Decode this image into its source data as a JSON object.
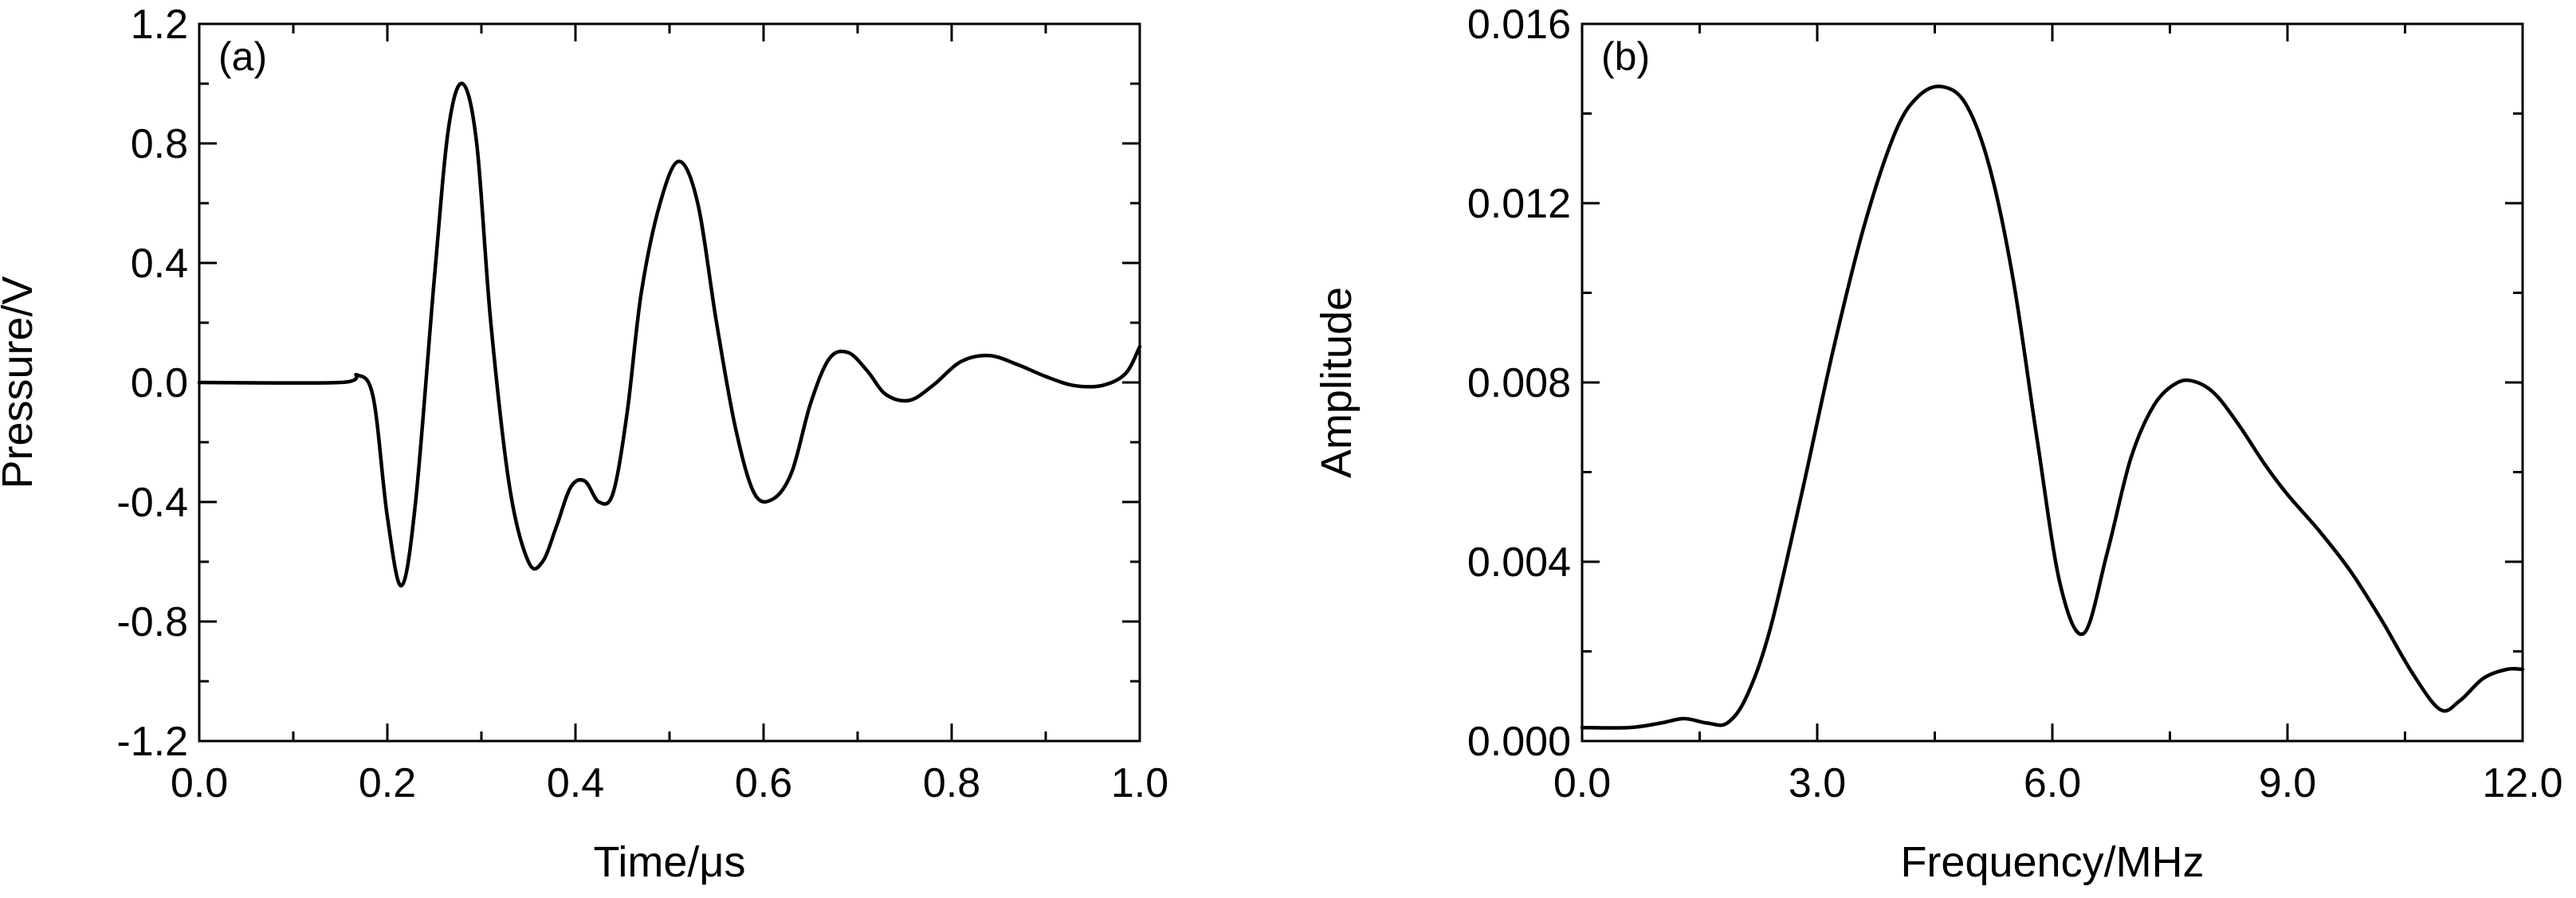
{
  "chart_data": [
    {
      "type": "line",
      "panel_label": "(a)",
      "xlabel": "Time/μs",
      "ylabel": "Pressure/V",
      "xlim": [
        0.0,
        1.0
      ],
      "ylim": [
        -1.2,
        1.2
      ],
      "x_ticks": [
        0.0,
        0.2,
        0.4,
        0.6,
        0.8,
        1.0
      ],
      "x_tick_labels": [
        "0.0",
        "0.2",
        "0.4",
        "0.6",
        "0.8",
        "1.0"
      ],
      "y_ticks": [
        -1.2,
        -0.8,
        -0.4,
        0.0,
        0.4,
        0.8,
        1.2
      ],
      "y_tick_labels": [
        "-1.2",
        "-0.8",
        "-0.4",
        "0.0",
        "0.4",
        "0.8",
        "1.2"
      ],
      "grid": false,
      "series": [
        {
          "x": [
            0.0,
            0.15,
            0.168,
            0.185,
            0.2,
            0.215,
            0.23,
            0.25,
            0.265,
            0.28,
            0.295,
            0.31,
            0.33,
            0.35,
            0.365,
            0.38,
            0.395,
            0.41,
            0.425,
            0.44,
            0.455,
            0.47,
            0.49,
            0.51,
            0.53,
            0.55,
            0.57,
            0.59,
            0.61,
            0.63,
            0.65,
            0.67,
            0.69,
            0.71,
            0.73,
            0.755,
            0.78,
            0.81,
            0.84,
            0.87,
            0.9,
            0.93,
            0.96,
            0.985,
            1.0
          ],
          "y": [
            0.0,
            0.0,
            0.025,
            -0.05,
            -0.45,
            -0.68,
            -0.4,
            0.35,
            0.85,
            1.0,
            0.8,
            0.2,
            -0.35,
            -0.6,
            -0.6,
            -0.48,
            -0.35,
            -0.33,
            -0.4,
            -0.37,
            -0.1,
            0.3,
            0.6,
            0.74,
            0.6,
            0.2,
            -0.15,
            -0.37,
            -0.39,
            -0.3,
            -0.07,
            0.08,
            0.1,
            0.04,
            -0.04,
            -0.06,
            -0.01,
            0.07,
            0.09,
            0.06,
            0.02,
            -0.01,
            -0.01,
            0.03,
            0.12
          ]
        }
      ]
    },
    {
      "type": "line",
      "panel_label": "(b)",
      "xlabel": "Frequency/MHz",
      "ylabel": "Amplitude",
      "xlim": [
        0.0,
        12.0
      ],
      "ylim": [
        0.0,
        0.016
      ],
      "x_ticks": [
        0.0,
        3.0,
        6.0,
        9.0,
        12.0
      ],
      "x_tick_labels": [
        "0.0",
        "3.0",
        "6.0",
        "9.0",
        "12.0"
      ],
      "y_ticks": [
        0.0,
        0.004,
        0.008,
        0.012,
        0.016
      ],
      "y_tick_labels": [
        "0.000",
        "0.004",
        "0.008",
        "0.012",
        "0.016"
      ],
      "grid": false,
      "series": [
        {
          "x": [
            0.0,
            0.6,
            1.0,
            1.3,
            1.6,
            1.85,
            2.1,
            2.4,
            2.8,
            3.2,
            3.6,
            4.0,
            4.3,
            4.6,
            4.9,
            5.2,
            5.5,
            5.8,
            6.1,
            6.4,
            6.7,
            7.0,
            7.3,
            7.6,
            7.85,
            8.1,
            8.4,
            8.7,
            9.0,
            9.4,
            9.8,
            10.2,
            10.6,
            10.95,
            11.2,
            11.5,
            11.8,
            12.0
          ],
          "y": [
            0.0003,
            0.0003,
            0.0004,
            0.0005,
            0.0004,
            0.0004,
            0.001,
            0.0025,
            0.0055,
            0.0087,
            0.0115,
            0.0136,
            0.0144,
            0.0146,
            0.0142,
            0.0128,
            0.0103,
            0.0068,
            0.0035,
            0.0024,
            0.0042,
            0.0063,
            0.0075,
            0.008,
            0.008,
            0.0077,
            0.007,
            0.0062,
            0.0055,
            0.0047,
            0.0038,
            0.0027,
            0.0015,
            0.0007,
            0.0009,
            0.0014,
            0.0016,
            0.0016
          ]
        }
      ]
    }
  ]
}
